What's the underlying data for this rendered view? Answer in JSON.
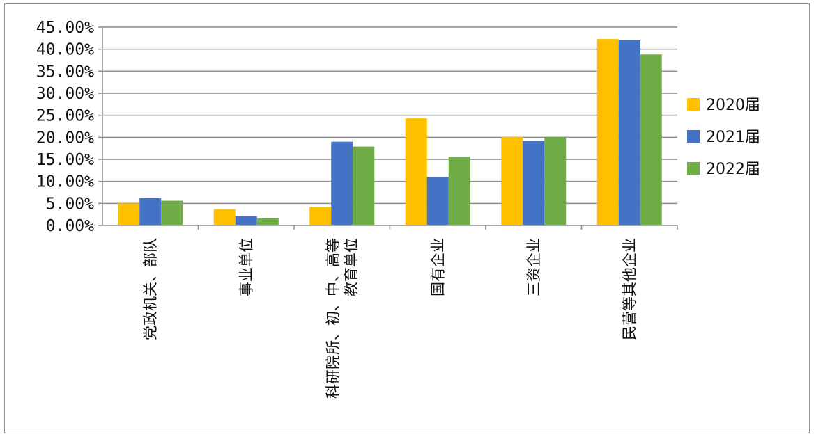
{
  "chart_data": {
    "type": "bar",
    "title": "",
    "xlabel": "",
    "ylabel": "",
    "ylim": [
      0,
      45
    ],
    "y_ticks": [
      "0.00%",
      "5.00%",
      "10.00%",
      "15.00%",
      "20.00%",
      "25.00%",
      "30.00%",
      "35.00%",
      "40.00%",
      "45.00%"
    ],
    "grid": true,
    "legend_position": "right",
    "categories": [
      [
        "党政机关、部队"
      ],
      [
        "事业单位"
      ],
      [
        "科研院所、初、中、高等",
        "教育单位"
      ],
      [
        "国有企业"
      ],
      [
        "三资企业"
      ],
      [
        "民营等其他企业"
      ]
    ],
    "series": [
      {
        "name": "2020届",
        "color": "#FFC000",
        "values": [
          5.0,
          3.7,
          4.2,
          24.3,
          20.1,
          42.3
        ]
      },
      {
        "name": "2021届",
        "color": "#4472C4",
        "values": [
          6.2,
          2.1,
          19.0,
          11.0,
          19.2,
          42.0
        ]
      },
      {
        "name": "2022届",
        "color": "#70AD47",
        "values": [
          5.6,
          1.6,
          17.9,
          15.6,
          20.1,
          38.8
        ]
      }
    ]
  }
}
